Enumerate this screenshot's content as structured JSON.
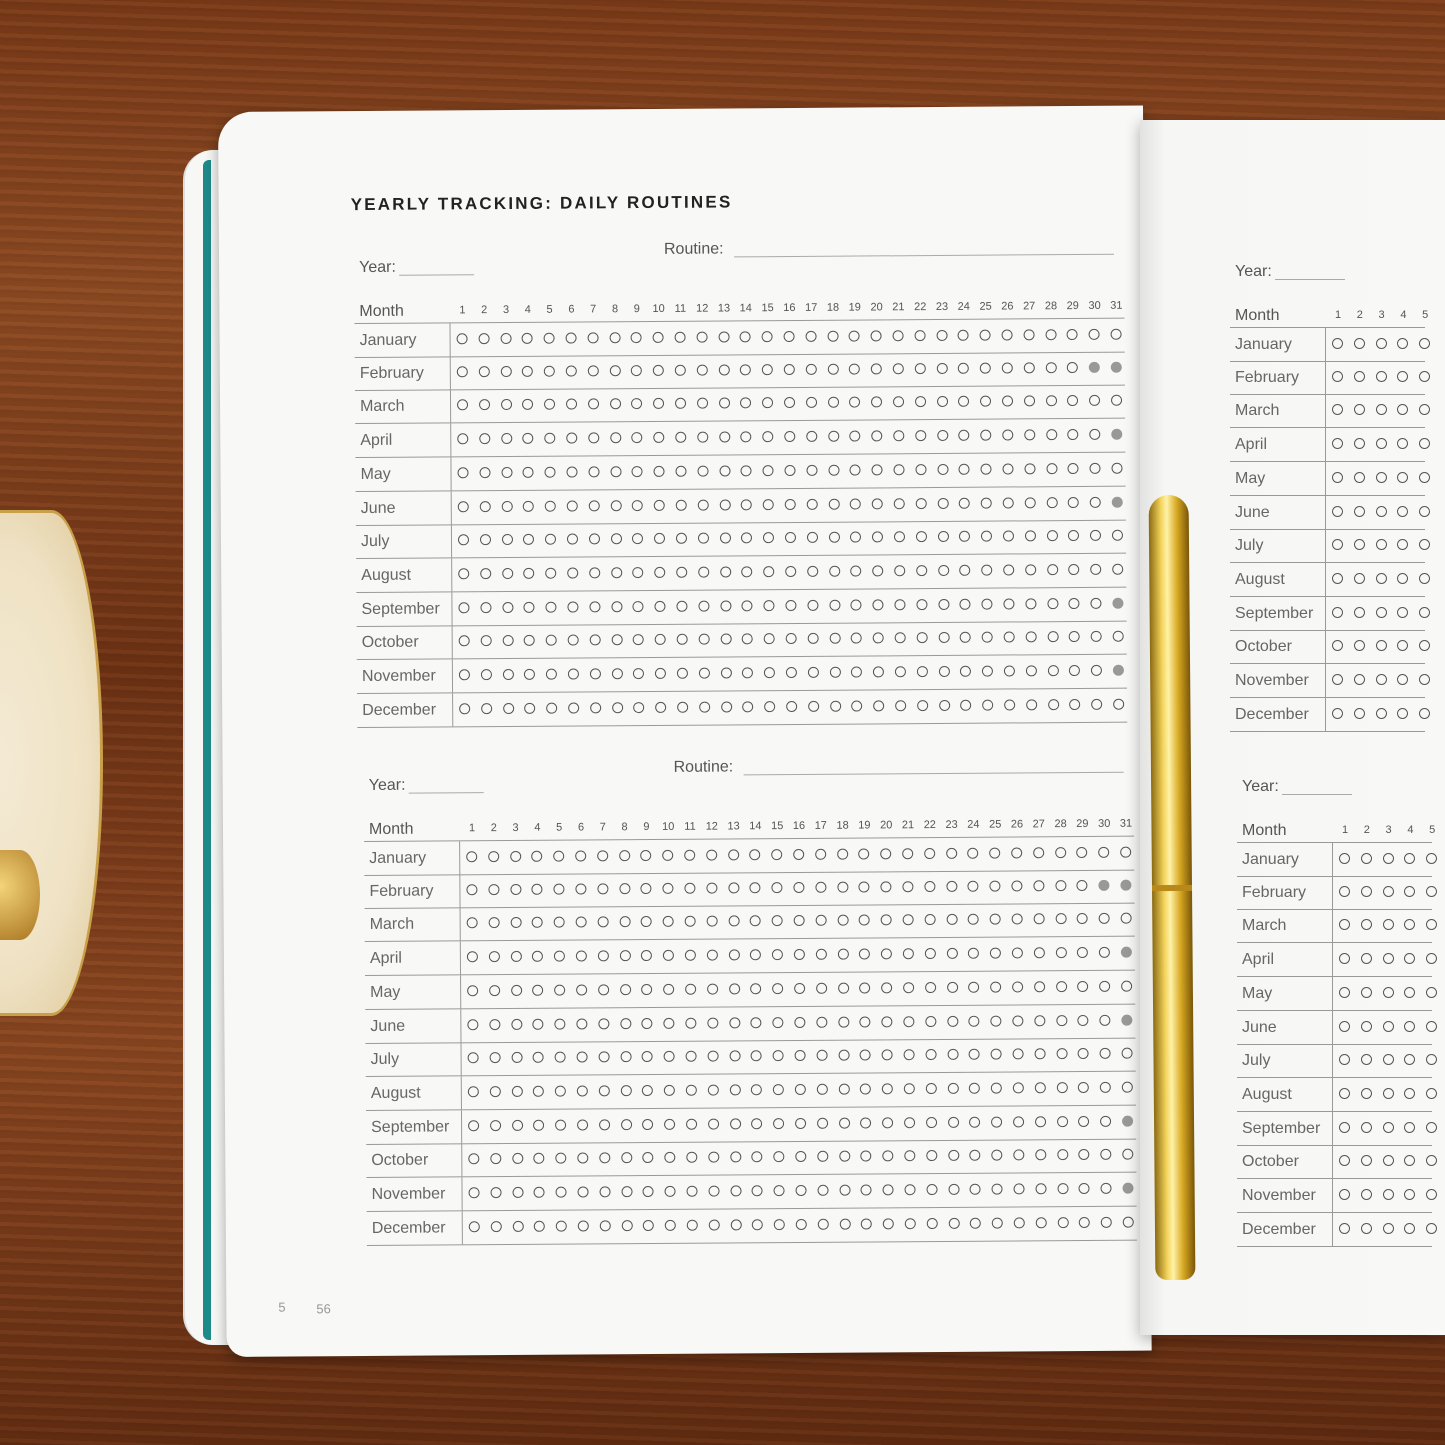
{
  "title": "YEARLY TRACKING: DAILY ROUTINES",
  "labels": {
    "year": "Year:",
    "routine": "Routine:",
    "month": "Month"
  },
  "page_numbers": {
    "current": "56",
    "underneath": "5"
  },
  "months": [
    "January",
    "February",
    "March",
    "April",
    "May",
    "June",
    "July",
    "August",
    "September",
    "October",
    "November",
    "December"
  ],
  "days_in_month": [
    31,
    29,
    31,
    30,
    31,
    30,
    31,
    31,
    30,
    31,
    30,
    31
  ],
  "days": [
    1,
    2,
    3,
    4,
    5,
    6,
    7,
    8,
    9,
    10,
    11,
    12,
    13,
    14,
    15,
    16,
    17,
    18,
    19,
    20,
    21,
    22,
    23,
    24,
    25,
    26,
    27,
    28,
    29,
    30,
    31
  ],
  "right_page_visible_days": [
    1,
    2,
    3,
    4,
    5
  ],
  "colors": {
    "cover_edge": "#1d8a8a",
    "unavailable_day": "#999999",
    "wood": "#7a3a18",
    "pen": "#e0b53a"
  }
}
